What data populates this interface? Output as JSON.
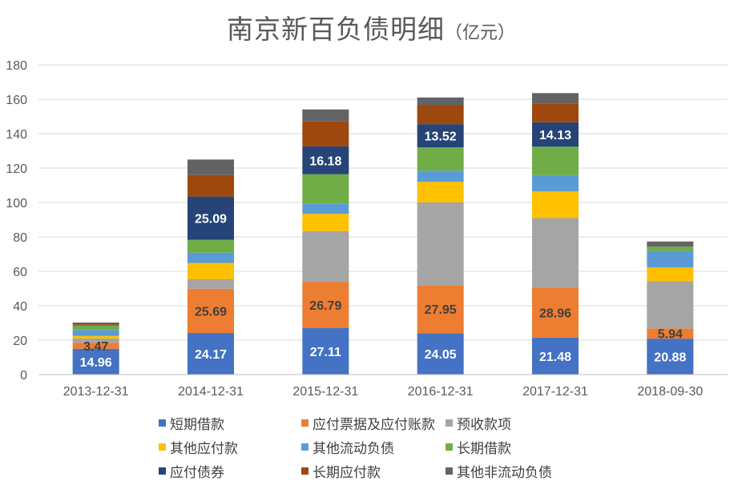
{
  "chart_data": {
    "type": "bar",
    "stacked": true,
    "title": "南京新百负债明细",
    "title_unit": "（亿元）",
    "xlabel": "",
    "ylabel": "",
    "ylim": [
      0,
      180
    ],
    "yticks": [
      0,
      20,
      40,
      60,
      80,
      100,
      120,
      140,
      160,
      180
    ],
    "grid": true,
    "legend_position": "bottom",
    "categories": [
      "2013-12-31",
      "2014-12-31",
      "2015-12-31",
      "2016-12-31",
      "2017-12-31",
      "2018-09-30"
    ],
    "series": [
      {
        "name": "短期借款",
        "color": "#4472C4",
        "values": [
          14.96,
          24.17,
          27.11,
          24.05,
          21.48,
          20.88
        ],
        "labels": [
          "14.96",
          "24.17",
          "27.11",
          "24.05",
          "21.48",
          "20.88"
        ],
        "label_color": "#ffffff"
      },
      {
        "name": "应付票据及应付账款",
        "color": "#ED7D31",
        "values": [
          3.47,
          25.69,
          26.79,
          27.95,
          28.96,
          5.94
        ],
        "labels": [
          "3.47",
          "25.69",
          "26.79",
          "27.95",
          "28.96",
          "5.94"
        ],
        "label_color": "#404040"
      },
      {
        "name": "预收款项",
        "color": "#A5A5A5",
        "values": [
          2.5,
          5.5,
          29.5,
          48.0,
          40.5,
          27.5
        ],
        "labels": [
          "",
          "",
          "",
          "",
          "",
          ""
        ],
        "label_color": "#404040"
      },
      {
        "name": "其他应付款",
        "color": "#FFC000",
        "values": [
          1.5,
          9.5,
          10.0,
          12.0,
          15.5,
          8.0
        ],
        "labels": [
          "",
          "",
          "",
          "",
          "",
          ""
        ],
        "label_color": "#404040"
      },
      {
        "name": "其他流动负债",
        "color": "#5B9BD5",
        "values": [
          3.5,
          6.0,
          6.0,
          6.5,
          9.5,
          9.5
        ],
        "labels": [
          "",
          "",
          "",
          "",
          "",
          ""
        ],
        "label_color": "#404040"
      },
      {
        "name": "长期借款",
        "color": "#70AD47",
        "values": [
          2.5,
          7.5,
          17.0,
          13.5,
          16.5,
          2.5
        ],
        "labels": [
          "",
          "",
          "",
          "",
          "",
          ""
        ],
        "label_color": "#404040"
      },
      {
        "name": "应付债券",
        "color": "#264478",
        "values": [
          0,
          25.09,
          16.18,
          13.52,
          14.13,
          0
        ],
        "labels": [
          "",
          "25.09",
          "16.18",
          "13.52",
          "14.13",
          ""
        ],
        "label_color": "#ffffff"
      },
      {
        "name": "长期应付款",
        "color": "#9E480E",
        "values": [
          0.8,
          12.5,
          14.5,
          11.0,
          11.0,
          0
        ],
        "labels": [
          "",
          "",
          "",
          "",
          "",
          ""
        ],
        "label_color": "#404040"
      },
      {
        "name": "其他非流动负债",
        "color": "#636363",
        "values": [
          1.0,
          9.0,
          7.0,
          4.5,
          6.0,
          3.0
        ],
        "labels": [
          "",
          "",
          "",
          "",
          "",
          ""
        ],
        "label_color": "#404040"
      }
    ]
  }
}
